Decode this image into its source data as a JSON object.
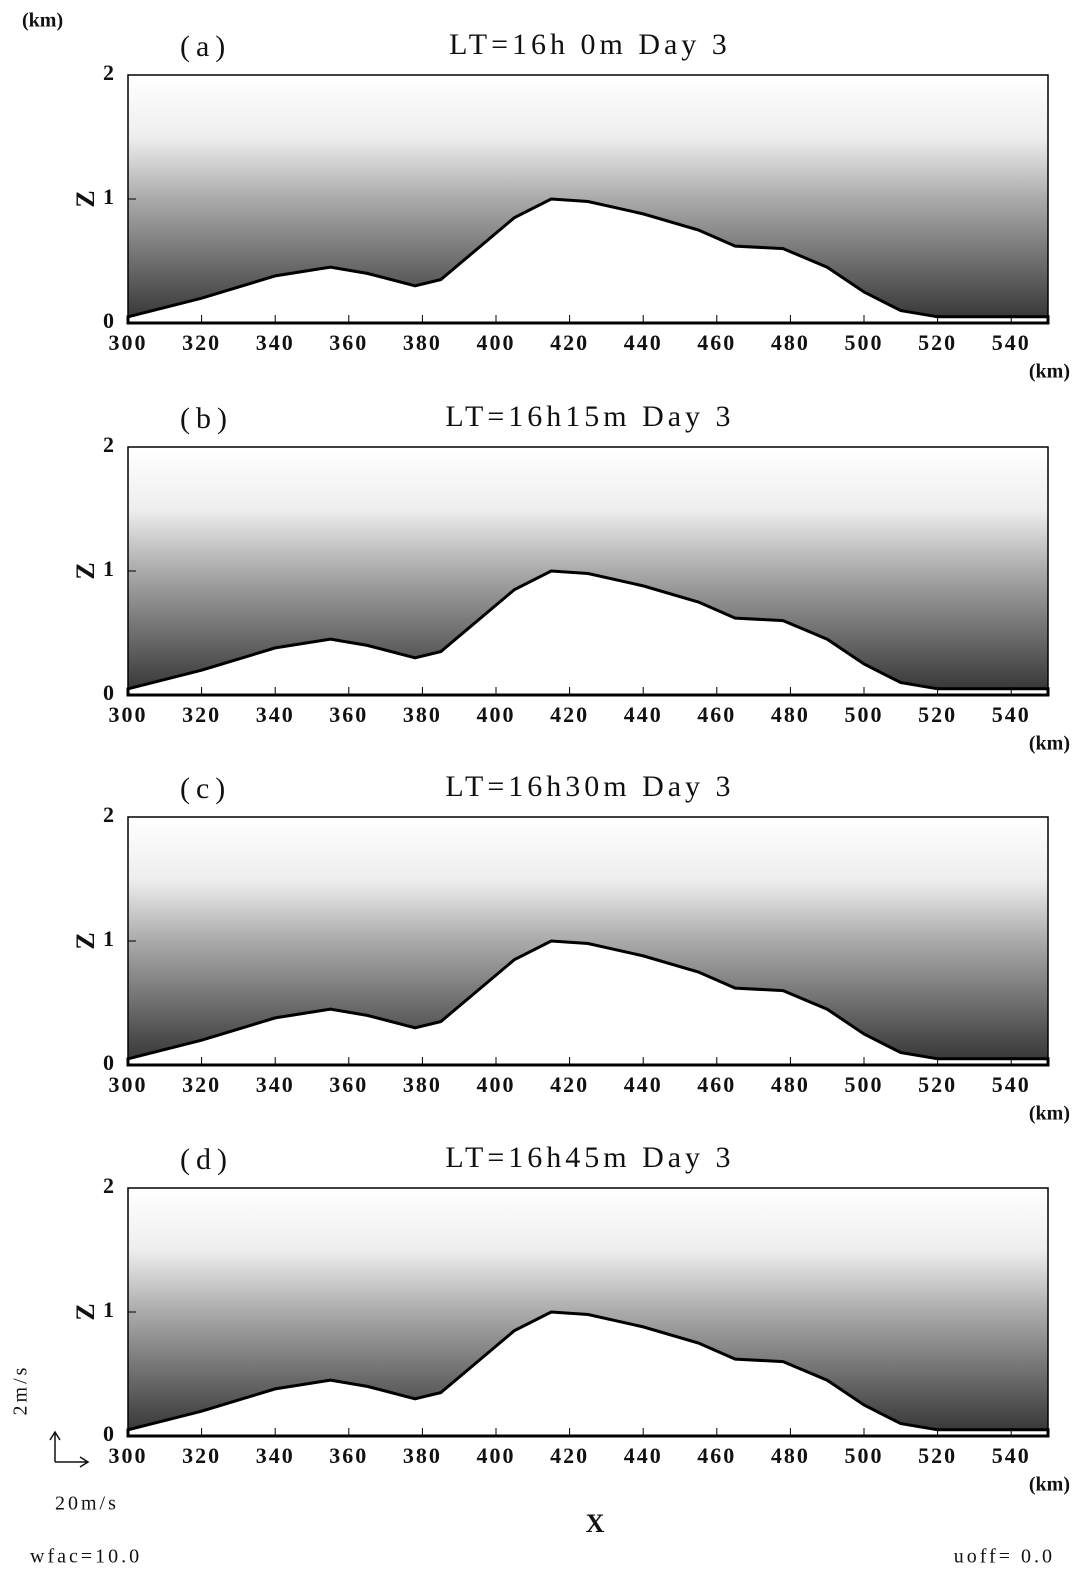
{
  "figure": {
    "y_unit": "(km)",
    "x_label": "X",
    "w_scale": "2m/s",
    "u_scale": "20m/s",
    "wfac": "wfac=10.0",
    "uoff": "uoff= 0.0"
  },
  "chart_data": [
    {
      "type": "area",
      "panel": "(a)",
      "title": "LT=16h 0m Day 3",
      "y_label": "Z",
      "x_unit": "(km)",
      "x": [
        300,
        320,
        340,
        355,
        365,
        378,
        385,
        395,
        405,
        415,
        425,
        440,
        455,
        465,
        478,
        490,
        500,
        510,
        520,
        550
      ],
      "values": [
        0.05,
        0.2,
        0.38,
        0.45,
        0.4,
        0.3,
        0.35,
        0.6,
        0.85,
        1.0,
        0.98,
        0.88,
        0.75,
        0.62,
        0.6,
        0.45,
        0.25,
        0.1,
        0.05,
        0.05
      ],
      "xlim": [
        300,
        550
      ],
      "ylim": [
        0,
        2
      ],
      "xticks": [
        300,
        320,
        340,
        360,
        380,
        400,
        420,
        440,
        460,
        480,
        500,
        520,
        540
      ],
      "yticks": [
        0,
        1,
        2
      ]
    },
    {
      "type": "area",
      "panel": "(b)",
      "title": "LT=16h15m Day 3",
      "y_label": "Z",
      "x_unit": "(km)",
      "x": [
        300,
        320,
        340,
        355,
        365,
        378,
        385,
        395,
        405,
        415,
        425,
        440,
        455,
        465,
        478,
        490,
        500,
        510,
        520,
        550
      ],
      "values": [
        0.05,
        0.2,
        0.38,
        0.45,
        0.4,
        0.3,
        0.35,
        0.6,
        0.85,
        1.0,
        0.98,
        0.88,
        0.75,
        0.62,
        0.6,
        0.45,
        0.25,
        0.1,
        0.05,
        0.05
      ],
      "xlim": [
        300,
        550
      ],
      "ylim": [
        0,
        2
      ],
      "xticks": [
        300,
        320,
        340,
        360,
        380,
        400,
        420,
        440,
        460,
        480,
        500,
        520,
        540
      ],
      "yticks": [
        0,
        1,
        2
      ]
    },
    {
      "type": "area",
      "panel": "(c)",
      "title": "LT=16h30m Day 3",
      "y_label": "Z",
      "x_unit": "(km)",
      "x": [
        300,
        320,
        340,
        355,
        365,
        378,
        385,
        395,
        405,
        415,
        425,
        440,
        455,
        465,
        478,
        490,
        500,
        510,
        520,
        550
      ],
      "values": [
        0.05,
        0.2,
        0.38,
        0.45,
        0.4,
        0.3,
        0.35,
        0.6,
        0.85,
        1.0,
        0.98,
        0.88,
        0.75,
        0.62,
        0.6,
        0.45,
        0.25,
        0.1,
        0.05,
        0.05
      ],
      "xlim": [
        300,
        550
      ],
      "ylim": [
        0,
        2
      ],
      "xticks": [
        300,
        320,
        340,
        360,
        380,
        400,
        420,
        440,
        460,
        480,
        500,
        520,
        540
      ],
      "yticks": [
        0,
        1,
        2
      ]
    },
    {
      "type": "area",
      "panel": "(d)",
      "title": "LT=16h45m Day 3",
      "y_label": "Z",
      "x_unit": "(km)",
      "x": [
        300,
        320,
        340,
        355,
        365,
        378,
        385,
        395,
        405,
        415,
        425,
        440,
        455,
        465,
        478,
        490,
        500,
        510,
        520,
        550
      ],
      "values": [
        0.05,
        0.2,
        0.38,
        0.45,
        0.4,
        0.3,
        0.35,
        0.6,
        0.85,
        1.0,
        0.98,
        0.88,
        0.75,
        0.62,
        0.6,
        0.45,
        0.25,
        0.1,
        0.05,
        0.05
      ],
      "xlim": [
        300,
        550
      ],
      "ylim": [
        0,
        2
      ],
      "xticks": [
        300,
        320,
        340,
        360,
        380,
        400,
        420,
        440,
        460,
        480,
        500,
        520,
        540
      ],
      "yticks": [
        0,
        1,
        2
      ]
    }
  ]
}
